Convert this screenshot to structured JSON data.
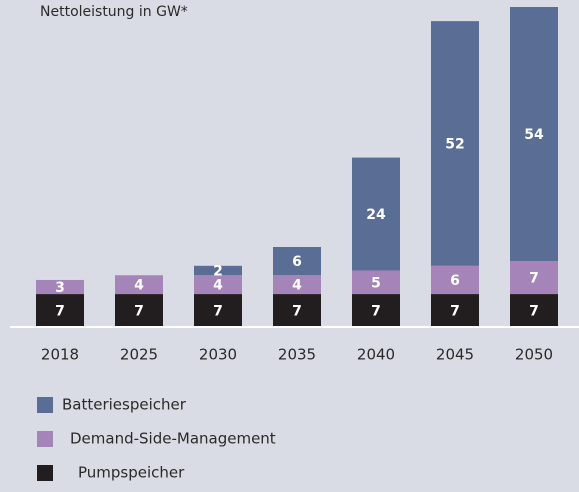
{
  "chart_data": {
    "type": "stacked-bar",
    "title": "Nettoleistung in GW*",
    "categories": [
      "2018",
      "2025",
      "2030",
      "2035",
      "2040",
      "2045",
      "2050"
    ],
    "series": [
      {
        "name": "Batteriespeicher",
        "color": "#5a6d94",
        "values": [
          null,
          null,
          2,
          6,
          24,
          52,
          54
        ]
      },
      {
        "name": "Demand-Side-Management",
        "color": "#a585b9",
        "values": [
          3,
          4,
          4,
          4,
          5,
          6,
          7
        ]
      },
      {
        "name": "Pumpspeicher",
        "color": "#221e1f",
        "values": [
          7,
          7,
          7,
          7,
          7,
          7,
          7
        ]
      }
    ]
  }
}
